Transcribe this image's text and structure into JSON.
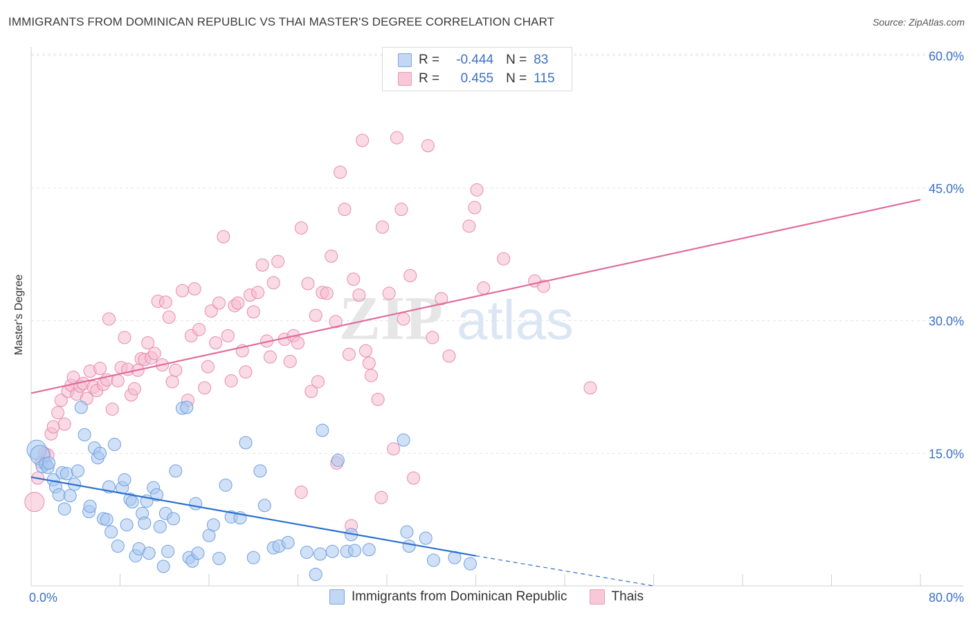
{
  "title": "IMMIGRANTS FROM DOMINICAN REPUBLIC VS THAI MASTER'S DEGREE CORRELATION CHART",
  "source": "Source: ZipAtlas.com",
  "watermark": "ZIPatlas",
  "colors": {
    "blue": "#a9c8f0",
    "blue_stroke": "#6f9fde",
    "blue_line": "#2a6fd0",
    "pink": "#f6bcd0",
    "pink_stroke": "#e88aac",
    "pink_line": "#e06c98",
    "axis_text": "#3a70c8"
  },
  "legend": {
    "rows": [
      {
        "r_label": "R =",
        "r_value": "-0.444",
        "n_label": "N =",
        "n_value": "83"
      },
      {
        "r_label": "R =",
        "r_value": "0.455",
        "n_label": "N =",
        "n_value": "115"
      }
    ]
  },
  "chart_data": {
    "type": "scatter",
    "title": "IMMIGRANTS FROM DOMINICAN REPUBLIC VS THAI MASTER'S DEGREE CORRELATION CHART",
    "xlabel": "",
    "ylabel": "Master's Degree",
    "xlim": [
      0,
      80
    ],
    "ylim": [
      0,
      60
    ],
    "x_tick_labels": [
      "0.0%",
      "80.0%"
    ],
    "y_tick_labels": [
      "15.0%",
      "30.0%",
      "45.0%",
      "60.0%"
    ],
    "y_ticks": [
      15,
      30,
      45,
      60
    ],
    "grid": true,
    "legend_position": "top-center",
    "series": [
      {
        "name": "Immigrants from Dominican Republic",
        "color": "#a9c8f0",
        "trend": {
          "x": [
            0,
            40
          ],
          "y": [
            12.3,
            3.4
          ],
          "dashed_to": [
            56,
            0
          ]
        },
        "points": [
          [
            0.5,
            15.4
          ],
          [
            0.8,
            14.8
          ],
          [
            1.0,
            13.5
          ],
          [
            1.3,
            13.8
          ],
          [
            1.5,
            13.4
          ],
          [
            1.6,
            13.9
          ],
          [
            2.0,
            12.0
          ],
          [
            2.2,
            11.2
          ],
          [
            2.5,
            10.3
          ],
          [
            2.8,
            12.8
          ],
          [
            3.0,
            8.7
          ],
          [
            3.2,
            12.7
          ],
          [
            3.5,
            10.2
          ],
          [
            3.9,
            11.5
          ],
          [
            4.2,
            13.0
          ],
          [
            4.5,
            20.2
          ],
          [
            4.8,
            17.1
          ],
          [
            5.2,
            8.4
          ],
          [
            5.3,
            9.0
          ],
          [
            5.7,
            15.6
          ],
          [
            6.0,
            14.5
          ],
          [
            6.2,
            15.0
          ],
          [
            6.5,
            7.6
          ],
          [
            6.8,
            7.5
          ],
          [
            7.0,
            11.2
          ],
          [
            7.2,
            6.1
          ],
          [
            7.5,
            16.0
          ],
          [
            7.8,
            4.5
          ],
          [
            8.2,
            11.1
          ],
          [
            8.4,
            12.0
          ],
          [
            8.6,
            6.9
          ],
          [
            8.9,
            9.8
          ],
          [
            9.1,
            9.5
          ],
          [
            9.4,
            3.4
          ],
          [
            9.7,
            4.2
          ],
          [
            10.0,
            8.2
          ],
          [
            10.2,
            7.1
          ],
          [
            10.4,
            9.6
          ],
          [
            10.6,
            3.7
          ],
          [
            11.0,
            11.1
          ],
          [
            11.3,
            10.3
          ],
          [
            11.6,
            6.7
          ],
          [
            11.9,
            2.2
          ],
          [
            12.1,
            8.2
          ],
          [
            12.3,
            3.9
          ],
          [
            12.8,
            7.6
          ],
          [
            13.0,
            13.0
          ],
          [
            13.6,
            20.1
          ],
          [
            14.0,
            20.2
          ],
          [
            14.2,
            3.2
          ],
          [
            14.5,
            2.8
          ],
          [
            14.8,
            9.3
          ],
          [
            15.0,
            3.7
          ],
          [
            16.0,
            5.7
          ],
          [
            16.4,
            6.9
          ],
          [
            16.9,
            3.1
          ],
          [
            17.5,
            11.4
          ],
          [
            18.0,
            7.8
          ],
          [
            18.8,
            7.7
          ],
          [
            19.3,
            16.2
          ],
          [
            20.0,
            3.2
          ],
          [
            20.6,
            13.0
          ],
          [
            21.0,
            9.1
          ],
          [
            21.8,
            4.3
          ],
          [
            22.3,
            4.5
          ],
          [
            23.1,
            4.9
          ],
          [
            24.8,
            3.8
          ],
          [
            25.6,
            1.3
          ],
          [
            26.0,
            3.6
          ],
          [
            26.2,
            17.6
          ],
          [
            27.1,
            3.9
          ],
          [
            27.6,
            14.2
          ],
          [
            28.4,
            3.9
          ],
          [
            28.8,
            5.8
          ],
          [
            29.1,
            4.0
          ],
          [
            30.4,
            4.1
          ],
          [
            33.5,
            16.5
          ],
          [
            33.8,
            6.1
          ],
          [
            34.0,
            4.5
          ],
          [
            35.5,
            5.4
          ],
          [
            36.2,
            2.9
          ],
          [
            38.1,
            3.2
          ],
          [
            39.5,
            2.5
          ]
        ]
      },
      {
        "name": "Thais",
        "color": "#f6bcd0",
        "trend": {
          "x": [
            0,
            80
          ],
          "y": [
            21.8,
            43.7
          ]
        },
        "points": [
          [
            0.3,
            9.5
          ],
          [
            0.6,
            12.2
          ],
          [
            0.9,
            14.0
          ],
          [
            1.2,
            15.0
          ],
          [
            1.5,
            14.8
          ],
          [
            1.8,
            17.2
          ],
          [
            2.0,
            18.0
          ],
          [
            2.4,
            19.6
          ],
          [
            2.7,
            21.0
          ],
          [
            3.0,
            18.3
          ],
          [
            3.3,
            22.0
          ],
          [
            3.6,
            22.7
          ],
          [
            3.8,
            23.6
          ],
          [
            4.1,
            21.7
          ],
          [
            4.4,
            22.6
          ],
          [
            4.7,
            22.9
          ],
          [
            5.0,
            21.2
          ],
          [
            5.3,
            24.3
          ],
          [
            5.6,
            22.5
          ],
          [
            5.9,
            22.1
          ],
          [
            6.2,
            24.6
          ],
          [
            6.5,
            22.8
          ],
          [
            6.8,
            23.3
          ],
          [
            7.0,
            30.2
          ],
          [
            7.3,
            20.0
          ],
          [
            7.8,
            23.2
          ],
          [
            8.1,
            24.7
          ],
          [
            8.4,
            28.1
          ],
          [
            8.7,
            24.5
          ],
          [
            9.0,
            21.6
          ],
          [
            9.3,
            22.3
          ],
          [
            9.6,
            24.4
          ],
          [
            9.9,
            25.7
          ],
          [
            10.2,
            25.6
          ],
          [
            10.5,
            27.5
          ],
          [
            10.8,
            25.8
          ],
          [
            11.1,
            26.3
          ],
          [
            11.4,
            32.2
          ],
          [
            11.8,
            25.0
          ],
          [
            12.1,
            32.1
          ],
          [
            12.4,
            30.4
          ],
          [
            12.7,
            23.1
          ],
          [
            13.0,
            24.4
          ],
          [
            13.6,
            33.4
          ],
          [
            14.1,
            21.0
          ],
          [
            14.4,
            28.3
          ],
          [
            14.7,
            33.6
          ],
          [
            15.1,
            29.0
          ],
          [
            15.6,
            22.4
          ],
          [
            15.9,
            24.8
          ],
          [
            16.2,
            31.1
          ],
          [
            16.6,
            27.5
          ],
          [
            16.9,
            32.0
          ],
          [
            17.3,
            39.5
          ],
          [
            17.7,
            28.3
          ],
          [
            18.0,
            23.2
          ],
          [
            18.3,
            31.7
          ],
          [
            18.6,
            32.0
          ],
          [
            19.0,
            26.6
          ],
          [
            19.3,
            24.2
          ],
          [
            19.7,
            32.9
          ],
          [
            20.0,
            31.0
          ],
          [
            20.4,
            33.2
          ],
          [
            20.8,
            36.3
          ],
          [
            21.2,
            27.7
          ],
          [
            21.5,
            25.9
          ],
          [
            21.8,
            34.3
          ],
          [
            22.2,
            36.7
          ],
          [
            22.8,
            27.9
          ],
          [
            23.3,
            25.4
          ],
          [
            23.6,
            28.3
          ],
          [
            24.0,
            27.5
          ],
          [
            24.3,
            40.5
          ],
          [
            24.9,
            34.2
          ],
          [
            25.2,
            22.0
          ],
          [
            25.6,
            30.6
          ],
          [
            25.8,
            23.1
          ],
          [
            26.2,
            33.2
          ],
          [
            26.6,
            33.1
          ],
          [
            27.0,
            37.3
          ],
          [
            27.4,
            29.9
          ],
          [
            27.8,
            46.8
          ],
          [
            28.2,
            42.6
          ],
          [
            28.6,
            26.2
          ],
          [
            29.0,
            34.7
          ],
          [
            29.5,
            32.9
          ],
          [
            29.8,
            50.4
          ],
          [
            30.1,
            26.6
          ],
          [
            30.4,
            25.2
          ],
          [
            30.6,
            23.8
          ],
          [
            31.2,
            21.1
          ],
          [
            31.6,
            40.6
          ],
          [
            32.2,
            33.1
          ],
          [
            32.6,
            15.5
          ],
          [
            32.9,
            50.7
          ],
          [
            33.3,
            42.6
          ],
          [
            33.5,
            30.2
          ],
          [
            34.1,
            35.1
          ],
          [
            34.4,
            12.2
          ],
          [
            35.7,
            49.8
          ],
          [
            36.1,
            28.1
          ],
          [
            36.9,
            32.5
          ],
          [
            37.6,
            26.0
          ],
          [
            39.4,
            40.7
          ],
          [
            39.9,
            42.8
          ],
          [
            40.1,
            44.8
          ],
          [
            40.7,
            33.7
          ],
          [
            42.5,
            37.0
          ],
          [
            45.3,
            34.5
          ],
          [
            46.1,
            33.9
          ],
          [
            50.3,
            22.4
          ],
          [
            27.5,
            13.9
          ],
          [
            24.3,
            10.6
          ],
          [
            31.5,
            10.0
          ],
          [
            28.8,
            6.8
          ]
        ]
      }
    ]
  }
}
